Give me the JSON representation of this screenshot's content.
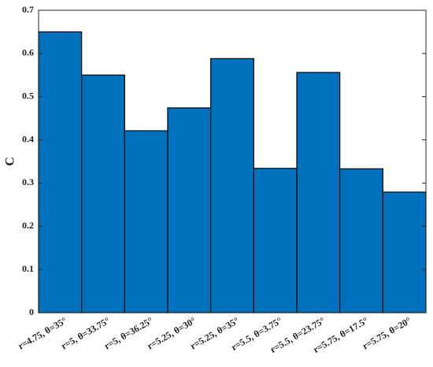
{
  "chart_data": {
    "type": "bar",
    "ylabel": "C",
    "categories": [
      "r=4.75, θ=35°",
      "r=5, θ=33.75°",
      "r=5, θ=36.25°",
      "r=5.25, θ=30°",
      "r=5.25, θ=35°",
      "r=5.5, θ=3.75°",
      "r=5.5, θ=23.75°",
      "r=5.75, θ=17.5°",
      "r=5.75, θ=20°"
    ],
    "values": [
      0.65,
      0.55,
      0.421,
      0.474,
      0.588,
      0.334,
      0.556,
      0.333,
      0.279
    ],
    "color": "#0072bd",
    "ylim": [
      0,
      0.7
    ],
    "yticks": [
      0,
      0.1,
      0.2,
      0.3,
      0.4,
      0.5,
      0.6,
      0.7
    ],
    "grid": false
  }
}
